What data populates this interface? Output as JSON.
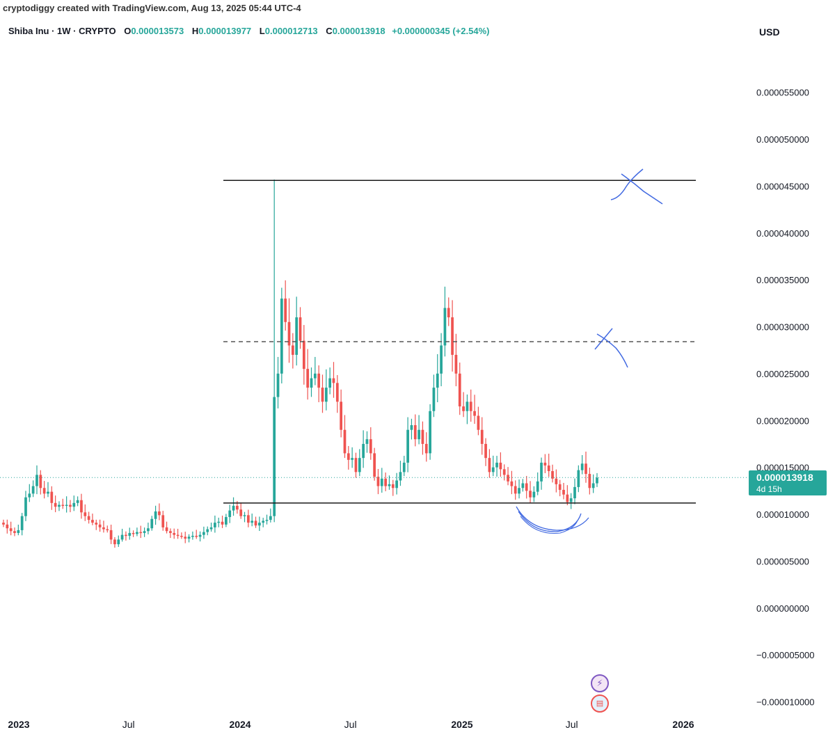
{
  "attribution": "cryptodiggy created with TradingView.com, Aug 13, 2025 05:44 UTC-4",
  "legend": {
    "symbol": "Shiba Inu · 1W · CRYPTO",
    "open_label": "O",
    "open": "0.000013573",
    "high_label": "H",
    "high": "0.000013977",
    "low_label": "L",
    "low": "0.000012713",
    "close_label": "C",
    "close": "0.000013918",
    "change": "+0.000000345 (+2.54%)"
  },
  "currency": "USD",
  "current_price": {
    "price": "0.000013918",
    "countdown": "4d 15h"
  },
  "colors": {
    "up": "#26a69a",
    "down": "#ef5350",
    "drawing": "#4169e1",
    "level": "#1a1a1a"
  },
  "event_icons": [
    "lightning-icon",
    "us-flag-icon"
  ],
  "chart_data": {
    "type": "candlestick",
    "title": "Shiba Inu · 1W · CRYPTO",
    "ylim": [
      -1.1e-05,
      6e-05
    ],
    "y_ticks": [
      "0.000055000",
      "0.000050000",
      "0.000045000",
      "0.000040000",
      "0.000035000",
      "0.000030000",
      "0.000025000",
      "0.000020000",
      "0.000015000",
      "0.000010000",
      "0.000005000",
      "0.000000000",
      "−0.000005000",
      "−0.000010000"
    ],
    "x_ticks": [
      "2023",
      "Jul",
      "2024",
      "Jul",
      "2025",
      "Jul",
      "2026"
    ],
    "x_tick_dates": [
      "2023-01-01",
      "2023-07-01",
      "2024-01-01",
      "2024-07-01",
      "2025-01-01",
      "2025-07-01",
      "2026-01-01"
    ],
    "xlim": [
      "2022-12-20",
      "2026-02-15"
    ],
    "grid": false,
    "candles_close": [
      8.9e-06,
      8.5e-06,
      8.2e-06,
      8e-06,
      8.3e-06,
      9.8e-06,
      1.18e-05,
      1.22e-05,
      1.3e-05,
      1.42e-05,
      1.28e-05,
      1.22e-05,
      1.24e-05,
      1.12e-05,
      1.08e-05,
      1.1e-05,
      1.09e-05,
      1.1e-05,
      1.08e-05,
      1.12e-05,
      1.15e-05,
      1.02e-05,
      9.8e-06,
      9.4e-06,
      9.1e-06,
      8.9e-06,
      8.6e-06,
      8.4e-06,
      8.3e-06,
      7.3e-06,
      6.8e-06,
      7.3e-06,
      7.8e-06,
      7.7e-06,
      8e-06,
      7.9e-06,
      8.1e-06,
      8e-06,
      8.2e-06,
      8.5e-06,
      9.5e-06,
      1.03e-05,
      9.9e-06,
      8.6e-06,
      8.2e-06,
      8e-06,
      7.8e-06,
      7.7e-06,
      7.6e-06,
      7.4e-06,
      7.6e-06,
      7.7e-06,
      7.6e-06,
      7.8e-06,
      8.1e-06,
      8.4e-06,
      8.6e-06,
      9.1e-06,
      9.2e-06,
      8.9e-06,
      9.7e-06,
      1.04e-05,
      1.09e-05,
      1.05e-05,
      9.8e-06,
      9.9e-06,
      9.1e-06,
      9.3e-06,
      8.8e-06,
      9.1e-06,
      9.3e-06,
      9.4e-06,
      9.8e-06,
      2.25e-05,
      2.5e-05,
      3.3e-05,
      3.05e-05,
      2.8e-05,
      2.7e-05,
      3.1e-05,
      2.85e-05,
      2.55e-05,
      2.35e-05,
      2.45e-05,
      2.5e-05,
      2.35e-05,
      2.2e-05,
      2.35e-05,
      2.45e-05,
      2.4e-05,
      2.2e-05,
      1.9e-05,
      1.65e-05,
      1.58e-05,
      1.6e-05,
      1.45e-05,
      1.6e-05,
      1.75e-05,
      1.8e-05,
      1.65e-05,
      1.4e-05,
      1.3e-05,
      1.38e-05,
      1.3e-05,
      1.32e-05,
      1.28e-05,
      1.36e-05,
      1.45e-05,
      1.55e-05,
      1.9e-05,
      1.95e-05,
      1.8e-05,
      1.9e-05,
      1.75e-05,
      1.65e-05,
      2.1e-05,
      2.35e-05,
      2.5e-05,
      2.8e-05,
      3.2e-05,
      3.1e-05,
      2.7e-05,
      2.5e-05,
      2.15e-05,
      2.1e-05,
      2.2e-05,
      2.1e-05,
      2.05e-05,
      1.9e-05,
      1.75e-05,
      1.6e-05,
      1.45e-05,
      1.5e-05,
      1.55e-05,
      1.48e-05,
      1.42e-05,
      1.35e-05,
      1.3e-05,
      1.22e-05,
      1.28e-05,
      1.33e-05,
      1.25e-05,
      1.18e-05,
      1.24e-05,
      1.35e-05,
      1.55e-05,
      1.52e-05,
      1.46e-05,
      1.38e-05,
      1.32e-05,
      1.26e-05,
      1.21e-05,
      1.13e-05,
      1.17e-05,
      1.29e-05,
      1.47e-05,
      1.54e-05,
      1.43e-05,
      1.28e-05,
      1.33e-05,
      1.39e-05
    ]
  },
  "annotations": {
    "resistance_top": 4.56e-05,
    "mid_dashed": 2.84e-05,
    "support": 1.12e-05,
    "current_price_value": 1.3918e-05
  }
}
